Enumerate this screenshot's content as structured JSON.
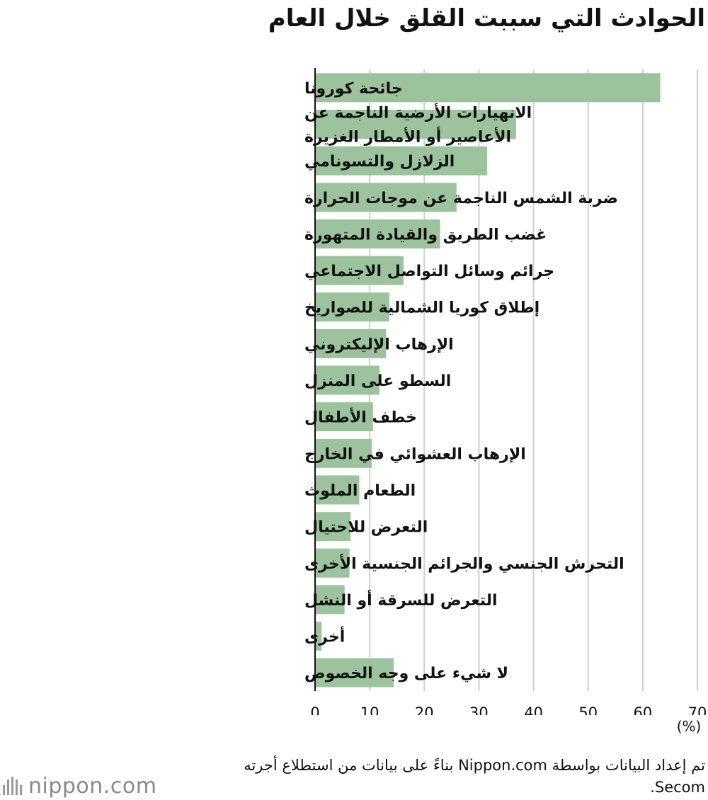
{
  "title": "الحوادث التي سببت القلق خلال العام",
  "chart_data": {
    "type": "bar",
    "orientation": "horizontal",
    "title": "الحوادث التي سببت القلق خلال العام",
    "unit_label": "(%)",
    "xlim": [
      0,
      70
    ],
    "xticks": [
      0,
      10,
      20,
      30,
      40,
      50,
      60,
      70
    ],
    "grid": true,
    "bar_color": "#9cc39e",
    "categories": [
      [
        "جائحة كورونا"
      ],
      [
        "الانهيارات الأرضية الناجمة عن",
        "الأعاصير أو الأمطار الغزيرة"
      ],
      [
        "الزلازل والتسونامي"
      ],
      [
        "ضربة الشمس الناجمة عن موجات الحرارة"
      ],
      [
        "غضب الطريق والقيادة المتهورة"
      ],
      [
        "جرائم وسائل التواصل الاجتماعي"
      ],
      [
        "إطلاق كوريا الشمالية للصواريخ"
      ],
      [
        "الإرهاب الإليكتروني"
      ],
      [
        "السطو على المنزل"
      ],
      [
        "خطف الأطفال"
      ],
      [
        "الإرهاب العشوائي في الخارج"
      ],
      [
        "الطعام الملوث"
      ],
      [
        "التعرض للاحتيال"
      ],
      [
        "التحرش الجنسي والجرائم الجنسية الأخرى"
      ],
      [
        "التعرض للسرقة أو النشل"
      ],
      [
        "أخرى"
      ],
      [
        "لا شيء على وجه الخصوص"
      ]
    ],
    "values": [
      63.2,
      36.8,
      31.5,
      25.9,
      22.9,
      16.2,
      13.6,
      13.0,
      11.8,
      10.6,
      10.4,
      8.1,
      6.5,
      6.3,
      5.4,
      1.2,
      14.4
    ]
  },
  "source": "تم إعداد البيانات بواسطة Nippon.com بناءً على بيانات من استطلاع أجرته Secom.",
  "logo": {
    "text": "nippon.com"
  }
}
